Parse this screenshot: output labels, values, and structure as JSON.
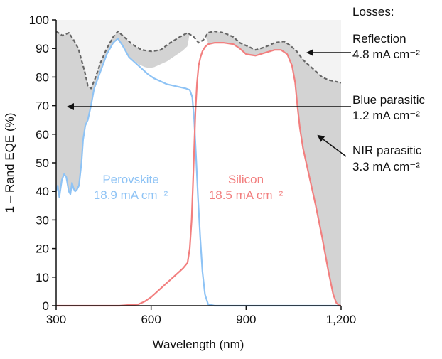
{
  "chart_data": {
    "type": "line",
    "xlabel": "Wavelength (nm)",
    "ylabel": "1 – Rand EQE (%)",
    "xlim": [
      300,
      1200
    ],
    "ylim": [
      0,
      100
    ],
    "x_ticks": [
      {
        "value": 300,
        "label": "300"
      },
      {
        "value": 600,
        "label": "600"
      },
      {
        "value": 900,
        "label": "900"
      },
      {
        "value": 1200,
        "label": "1,200"
      }
    ],
    "y_ticks": [
      {
        "value": 0,
        "label": "0"
      },
      {
        "value": 10,
        "label": "10"
      },
      {
        "value": 20,
        "label": "20"
      },
      {
        "value": 30,
        "label": "30"
      },
      {
        "value": 40,
        "label": "40"
      },
      {
        "value": 50,
        "label": "50"
      },
      {
        "value": 60,
        "label": "60"
      },
      {
        "value": 70,
        "label": "70"
      },
      {
        "value": 80,
        "label": "80"
      },
      {
        "value": 90,
        "label": "90"
      },
      {
        "value": 100,
        "label": "100"
      }
    ],
    "series": [
      {
        "name": "1 - R (total)",
        "color": "#666666",
        "x": [
          300,
          320,
          340,
          355,
          370,
          390,
          400,
          410,
          425,
          440,
          460,
          480,
          495,
          510,
          540,
          570,
          600,
          630,
          660,
          690,
          715,
          735,
          750,
          765,
          780,
          800,
          830,
          860,
          880,
          900,
          930,
          960,
          990,
          1020,
          1040,
          1060,
          1080,
          1100,
          1120,
          1140,
          1160,
          1180,
          1200
        ],
        "values": [
          96,
          94.5,
          95.5,
          93,
          90,
          82,
          77,
          76,
          80,
          85,
          90,
          94,
          96,
          94.5,
          91.5,
          89.5,
          89,
          89.5,
          92,
          94,
          95.5,
          94,
          92,
          93,
          95.5,
          96,
          95.5,
          94,
          92,
          91,
          89.5,
          90.5,
          92,
          92.5,
          91,
          89,
          86,
          84,
          82,
          80,
          79,
          78.5,
          78
        ]
      },
      {
        "name": "Perovskite",
        "color": "#8ec3f5",
        "x": [
          300,
          305,
          310,
          318,
          325,
          332,
          340,
          345,
          350,
          355,
          360,
          365,
          372,
          380,
          385,
          392,
          400,
          410,
          420,
          440,
          460,
          480,
          495,
          510,
          530,
          550,
          570,
          590,
          610,
          630,
          650,
          670,
          690,
          710,
          722,
          730,
          736,
          742,
          748,
          755,
          762,
          770,
          780,
          800,
          900,
          1000,
          1100,
          1200
        ],
        "values": [
          40,
          42,
          38,
          44,
          46,
          45,
          40,
          39,
          43,
          41,
          40,
          40.5,
          42,
          50,
          58,
          63,
          65,
          70,
          76,
          82,
          88,
          92,
          93.5,
          91,
          87,
          85,
          83,
          81,
          79.5,
          78.5,
          77.5,
          77,
          76.5,
          76,
          75.5,
          73,
          65,
          52,
          38,
          24,
          12,
          4,
          0.5,
          0,
          0,
          0,
          0,
          0
        ]
      },
      {
        "name": "Silicon",
        "color": "#f27f7f",
        "x": [
          300,
          400,
          500,
          560,
          580,
          600,
          620,
          640,
          660,
          680,
          700,
          715,
          722,
          728,
          732,
          736,
          740,
          745,
          750,
          756,
          762,
          770,
          780,
          800,
          830,
          860,
          880,
          900,
          930,
          960,
          990,
          1010,
          1030,
          1045,
          1055,
          1062,
          1070,
          1080,
          1100,
          1120,
          1140,
          1160,
          1175,
          1185,
          1195,
          1200
        ],
        "values": [
          0,
          0,
          0,
          0.5,
          1.5,
          3,
          5,
          7,
          9,
          11,
          13,
          15,
          20,
          30,
          42,
          55,
          68,
          78,
          84,
          87,
          89,
          90.5,
          91.5,
          92,
          92,
          91.5,
          90,
          88,
          87.5,
          88.5,
          89.5,
          89.5,
          88,
          84,
          78,
          70,
          62,
          55,
          45,
          35,
          24,
          12,
          4,
          1,
          0,
          0
        ]
      }
    ],
    "annotations": {
      "losses_heading": "Losses:",
      "reflection_label": "Reflection",
      "reflection_value": "4.8 mA cm⁻²",
      "blue_label": "Blue parasitic",
      "blue_value": "1.2 mA cm⁻²",
      "nir_label": "NIR parasitic",
      "nir_value": "3.3 mA cm⁻²",
      "perovskite_label": "Perovskite",
      "perovskite_value": "18.9 mA cm⁻²",
      "silicon_label": "Silicon",
      "silicon_value": "18.5 mA cm⁻²"
    },
    "colors": {
      "reflection_fill": "#f3f3f3",
      "parasitic_fill": "#d3d3d3",
      "total_line": "#666666",
      "perovskite": "#8ec3f5",
      "silicon": "#f27f7f",
      "axis": "#111111"
    }
  }
}
